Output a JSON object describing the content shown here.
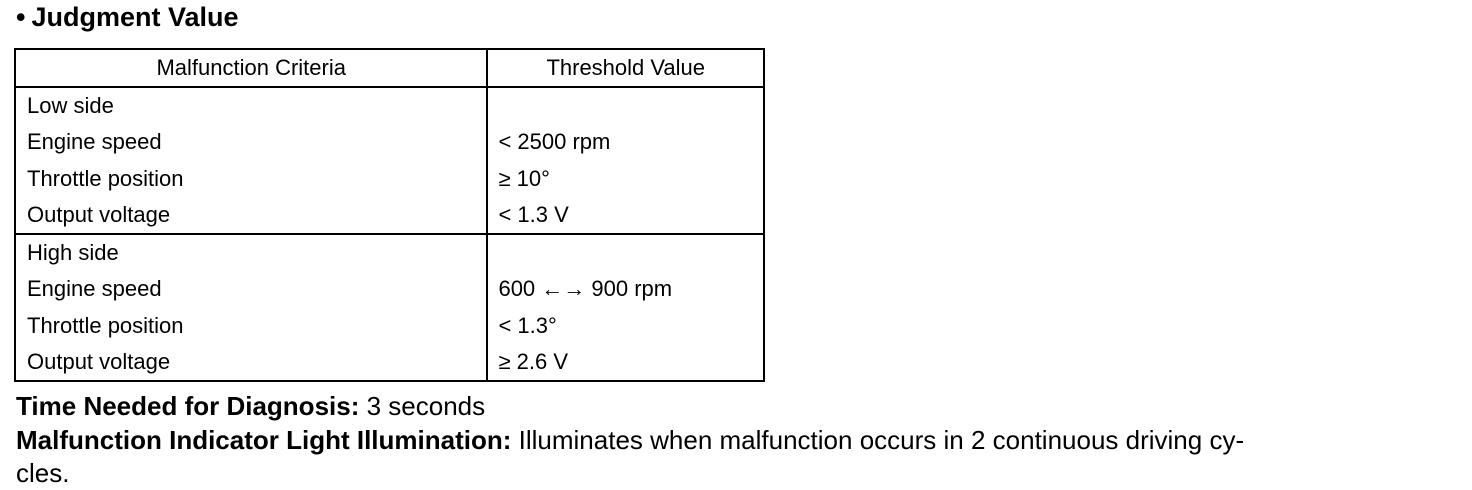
{
  "heading": {
    "bullet": "•",
    "text": "Judgment Value"
  },
  "table": {
    "headers": [
      "Malfunction Criteria",
      "Threshold Value"
    ],
    "groups": [
      {
        "criteria": [
          "Low side",
          "Engine speed",
          "Throttle position",
          "Output voltage"
        ],
        "thresholds": [
          "",
          "< 2500 rpm",
          "≥ 10°",
          "< 1.3 V"
        ]
      },
      {
        "criteria": [
          "High side",
          "Engine speed",
          "Throttle position",
          "Output voltage"
        ],
        "thresholds": [
          "",
          "600 ←→ 900 rpm",
          "< 1.3°",
          "≥ 2.6 V"
        ]
      }
    ]
  },
  "footer": {
    "time_label": "Time Needed for Diagnosis:",
    "time_value": "3 seconds",
    "mil_label": "Malfunction Indicator Light Illumination:",
    "mil_value_line1": "Illuminates when malfunction occurs in 2 continuous driving cy-",
    "mil_value_line2": "cles."
  }
}
